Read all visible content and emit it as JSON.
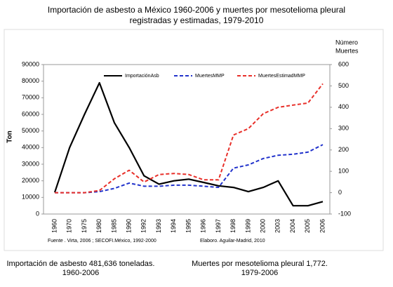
{
  "chart_data": {
    "type": "line",
    "title_lines": [
      "Importación de asbesto a México 1960-2006 y muertes por mesotelioma pleural",
      "registradas y estimadas, 1979-2010"
    ],
    "ylabel": "Ton",
    "y2label_lines": [
      "Número",
      "Muertes"
    ],
    "categories": [
      "1960",
      "1970",
      "1975",
      "1980",
      "1985",
      "1990",
      "1992",
      "1993",
      "1994",
      "1995",
      "1996",
      "1997",
      "1998",
      "1999",
      "2000",
      "2003",
      "2004",
      "2005",
      "2006"
    ],
    "series": [
      {
        "name": "ImportaciónAsb",
        "color": "#000000",
        "dash": false,
        "values": [
          13000,
          40000,
          60000,
          79000,
          55000,
          40000,
          23000,
          18000,
          20000,
          21000,
          19000,
          17000,
          16000,
          13500,
          16000,
          20000,
          5000,
          5000,
          7500
        ]
      },
      {
        "name": "MuertesMMP",
        "color": "#2233cc",
        "dash": true,
        "axis": "y2",
        "values": [
          0,
          0,
          0,
          5,
          20,
          45,
          30,
          30,
          35,
          35,
          30,
          25,
          115,
          130,
          160,
          175,
          180,
          190,
          225
        ]
      },
      {
        "name": "MuertesEstimadMMP",
        "color": "#e8302a",
        "dash": true,
        "axis": "y2",
        "values": [
          0,
          0,
          0,
          10,
          65,
          105,
          50,
          85,
          90,
          85,
          60,
          60,
          270,
          300,
          370,
          400,
          410,
          420,
          510
        ]
      }
    ],
    "ylim": [
      0,
      90000
    ],
    "yticks": [
      0,
      10000,
      20000,
      30000,
      40000,
      50000,
      60000,
      70000,
      80000,
      90000
    ],
    "y2lim": [
      -100,
      600
    ],
    "y2ticks": [
      -100,
      0,
      100,
      200,
      300,
      400,
      500,
      600
    ],
    "notes": [
      "Fuente . Virta, 2006 ; SECOFI.México, 1992-2000",
      "Elaboro. Aguilar-Madrid, 2010"
    ],
    "footnotes": [
      [
        "Importación de asbesto 481,636 toneladas.",
        "1960-2006"
      ],
      [
        "Muertes por mesotelioma pleural 1,772.",
        "1979-2006"
      ]
    ]
  }
}
